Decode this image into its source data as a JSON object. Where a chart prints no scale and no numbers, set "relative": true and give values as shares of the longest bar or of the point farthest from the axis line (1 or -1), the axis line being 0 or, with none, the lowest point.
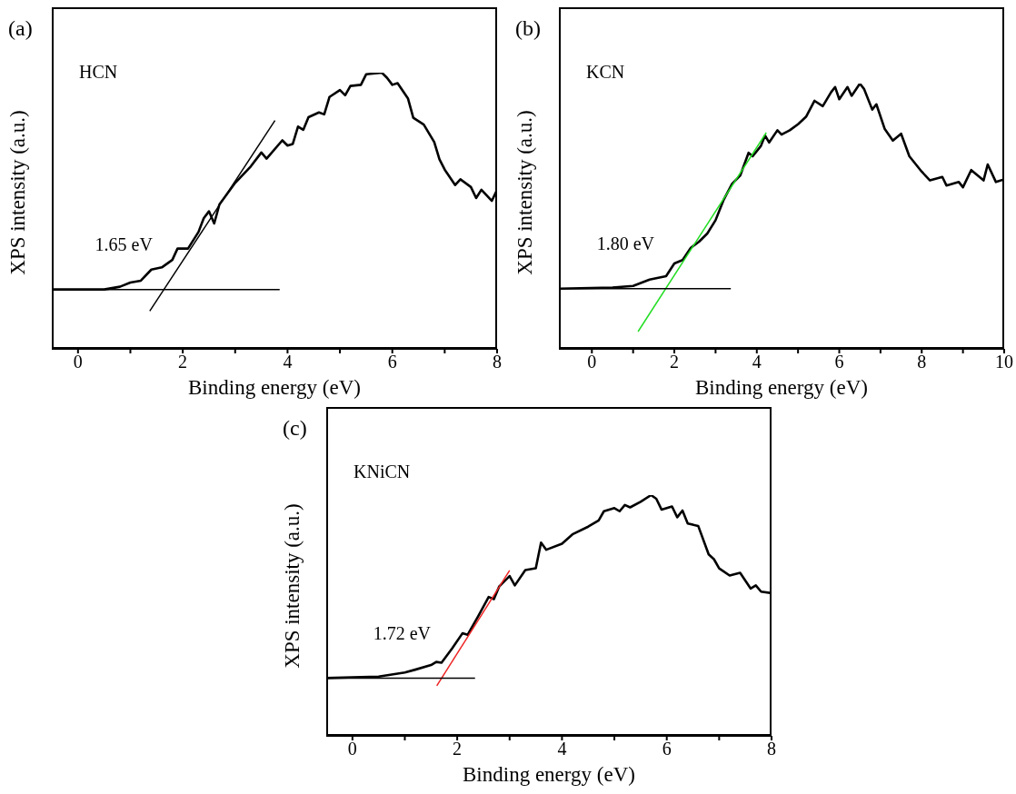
{
  "chart_data": [
    {
      "type": "line",
      "relative": true,
      "xlabel": "Binding energy (eV)",
      "ylabel": "XPS intensity (a.u.)",
      "xlim": [
        -0.5,
        8
      ],
      "xticks": [
        0,
        {
          "value": 1,
          "label": null
        },
        2,
        {
          "value": 3,
          "label": null
        },
        4,
        {
          "value": 5,
          "label": null
        },
        6,
        {
          "value": 7,
          "label": null
        },
        8
      ],
      "grid": false,
      "legend": false,
      "marker": "none",
      "line_style": "solid",
      "annotations": [
        "(a)",
        "HCN",
        {
          "text": "1.65 eV",
          "x": 1.65,
          "y": 0.215
        }
      ],
      "series": [
        {
          "color": "#000000",
          "x": [
            -0.5,
            0.5,
            0.8,
            1.0,
            1.2,
            1.4,
            1.6,
            1.8,
            1.9,
            2.1,
            2.3,
            2.4,
            2.5,
            2.6,
            2.7,
            3.0,
            3.3,
            3.5,
            3.6,
            3.9,
            4.0,
            4.1,
            4.2,
            4.3,
            4.4,
            4.6,
            4.7,
            4.8,
            5.0,
            5.1,
            5.2,
            5.4,
            5.5,
            5.8,
            5.9,
            6.0,
            6.1,
            6.3,
            6.4,
            6.6,
            6.8,
            6.9,
            7.0,
            7.2,
            7.3,
            7.5,
            7.6,
            7.7,
            7.9,
            8.0
          ],
          "values": [
            0.215,
            0.215,
            0.225,
            0.24,
            0.247,
            0.287,
            0.295,
            0.322,
            0.363,
            0.363,
            0.423,
            0.473,
            0.498,
            0.454,
            0.523,
            0.601,
            0.661,
            0.711,
            0.689,
            0.755,
            0.736,
            0.742,
            0.805,
            0.793,
            0.839,
            0.856,
            0.849,
            0.912,
            0.937,
            0.918,
            0.952,
            0.956,
            0.994,
            1.0,
            0.981,
            0.956,
            0.962,
            0.906,
            0.837,
            0.812,
            0.749,
            0.686,
            0.649,
            0.593,
            0.614,
            0.586,
            0.546,
            0.576,
            0.536,
            0.576
          ]
        },
        {
          "color": "#000000",
          "x": [
            1.37,
            3.76
          ],
          "values": [
            0.137,
            0.827
          ]
        },
        {
          "color": "#000000",
          "x": [
            -0.5,
            3.85
          ],
          "values": [
            0.215,
            0.215
          ]
        }
      ]
    },
    {
      "type": "line",
      "relative": true,
      "xlabel": "Binding energy (eV)",
      "ylabel": "XPS intensity (a.u.)",
      "xlim": [
        -0.8,
        10
      ],
      "xticks": [
        0,
        {
          "value": 1,
          "label": null
        },
        2,
        {
          "value": 3,
          "label": null
        },
        4,
        {
          "value": 5,
          "label": null
        },
        6,
        {
          "value": 7,
          "label": null
        },
        8,
        {
          "value": 9,
          "label": null
        },
        10
      ],
      "grid": false,
      "legend": false,
      "marker": "none",
      "line_style": "solid",
      "annotations": [
        "(b)",
        "KCN",
        {
          "text": "1.80 eV",
          "x": 1.8,
          "y": 0.227
        }
      ],
      "series": [
        {
          "color": "#000000",
          "x": [
            -0.8,
            0.5,
            1.0,
            1.4,
            1.8,
            2.0,
            2.2,
            2.4,
            2.6,
            2.8,
            3.0,
            3.2,
            3.4,
            3.6,
            3.8,
            3.9,
            4.1,
            4.2,
            4.3,
            4.5,
            4.6,
            4.8,
            5.0,
            5.2,
            5.4,
            5.6,
            5.8,
            5.9,
            6.0,
            6.2,
            6.3,
            6.5,
            6.6,
            6.8,
            6.9,
            7.1,
            7.3,
            7.5,
            7.7,
            8.0,
            8.2,
            8.5,
            8.6,
            8.9,
            9.0,
            9.2,
            9.5,
            9.6,
            9.8,
            10.0
          ],
          "values": [
            0.227,
            0.231,
            0.237,
            0.261,
            0.274,
            0.322,
            0.335,
            0.381,
            0.404,
            0.435,
            0.485,
            0.563,
            0.622,
            0.654,
            0.739,
            0.726,
            0.765,
            0.804,
            0.778,
            0.824,
            0.808,
            0.824,
            0.847,
            0.876,
            0.935,
            0.915,
            0.967,
            0.987,
            0.941,
            0.987,
            0.954,
            1.0,
            0.98,
            0.902,
            0.922,
            0.83,
            0.785,
            0.811,
            0.726,
            0.668,
            0.635,
            0.648,
            0.616,
            0.629,
            0.609,
            0.674,
            0.635,
            0.695,
            0.629,
            0.639
          ]
        },
        {
          "color": "#22dd22",
          "x": [
            1.12,
            4.23
          ],
          "values": [
            0.065,
            0.815
          ]
        },
        {
          "color": "#000000",
          "x": [
            -0.8,
            3.37
          ],
          "values": [
            0.227,
            0.227
          ]
        }
      ]
    },
    {
      "type": "line",
      "relative": true,
      "xlabel": "Binding energy (eV)",
      "ylabel": "XPS intensity (a.u.)",
      "xlim": [
        -0.5,
        8
      ],
      "xticks": [
        0,
        {
          "value": 1,
          "label": null
        },
        2,
        {
          "value": 3,
          "label": null
        },
        4,
        {
          "value": 5,
          "label": null
        },
        6,
        {
          "value": 7,
          "label": null
        },
        8
      ],
      "grid": false,
      "legend": false,
      "marker": "none",
      "line_style": "solid",
      "annotations": [
        "(c)",
        "KNiCN",
        {
          "text": "1.72 eV",
          "x": 1.72,
          "y": 0.24
        }
      ],
      "series": [
        {
          "color": "#000000",
          "x": [
            -0.5,
            0.5,
            1.0,
            1.2,
            1.5,
            1.6,
            1.7,
            1.9,
            2.1,
            2.2,
            2.4,
            2.6,
            2.7,
            2.8,
            3.0,
            3.1,
            3.3,
            3.5,
            3.6,
            3.7,
            4.0,
            4.2,
            4.5,
            4.7,
            4.8,
            5.0,
            5.1,
            5.2,
            5.3,
            5.5,
            5.7,
            5.8,
            5.9,
            6.1,
            6.2,
            6.3,
            6.4,
            6.6,
            6.8,
            6.9,
            7.0,
            7.2,
            7.4,
            7.6,
            7.7,
            7.8,
            8.0
          ],
          "values": [
            0.24,
            0.246,
            0.263,
            0.275,
            0.294,
            0.307,
            0.304,
            0.362,
            0.426,
            0.42,
            0.497,
            0.577,
            0.568,
            0.62,
            0.664,
            0.625,
            0.689,
            0.696,
            0.803,
            0.773,
            0.798,
            0.837,
            0.869,
            0.895,
            0.933,
            0.946,
            0.933,
            0.959,
            0.949,
            0.972,
            1.0,
            0.985,
            0.94,
            0.953,
            0.908,
            0.936,
            0.882,
            0.872,
            0.754,
            0.734,
            0.696,
            0.666,
            0.677,
            0.612,
            0.625,
            0.599,
            0.593
          ]
        },
        {
          "color": "#ee2222",
          "x": [
            1.61,
            3.0
          ],
          "values": [
            0.208,
            0.687
          ]
        },
        {
          "color": "#000000",
          "x": [
            -0.5,
            2.34
          ],
          "values": [
            0.24,
            0.24
          ]
        }
      ]
    }
  ]
}
